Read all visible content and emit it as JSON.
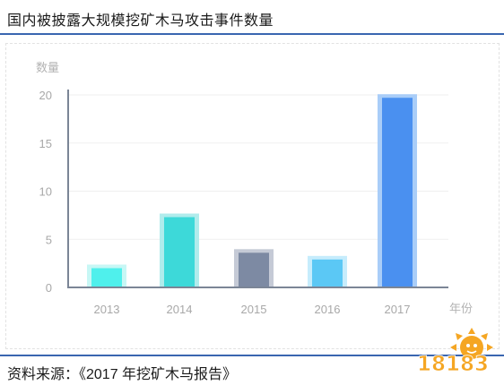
{
  "header": {
    "title": "国内被披露大规模挖矿木马攻击事件数量"
  },
  "footer": {
    "source": "资料来源：《2017 年挖矿木马报告》"
  },
  "watermark": {
    "text": "18183",
    "icon_name": "sun-logo-icon",
    "color": "#f5a623"
  },
  "chart_data": {
    "type": "bar",
    "title": "",
    "ylabel": "数量",
    "xlabel": "年份",
    "categories": [
      "2013",
      "2014",
      "2015",
      "2016",
      "2017"
    ],
    "values": [
      2,
      7.3,
      3.6,
      2.9,
      19.7
    ],
    "ylim": [
      0,
      20
    ],
    "yticks": [
      0,
      5,
      10,
      15,
      20
    ],
    "grid": true,
    "colors": {
      "inner": [
        "#4ff0ec",
        "#3dd9d9",
        "#7d8aa3",
        "#5bc8f5",
        "#4a90f0"
      ],
      "halo": [
        "#c7f7f5",
        "#b0ecec",
        "#c5cad6",
        "#c6ecfc",
        "#a9cdf8"
      ]
    }
  }
}
